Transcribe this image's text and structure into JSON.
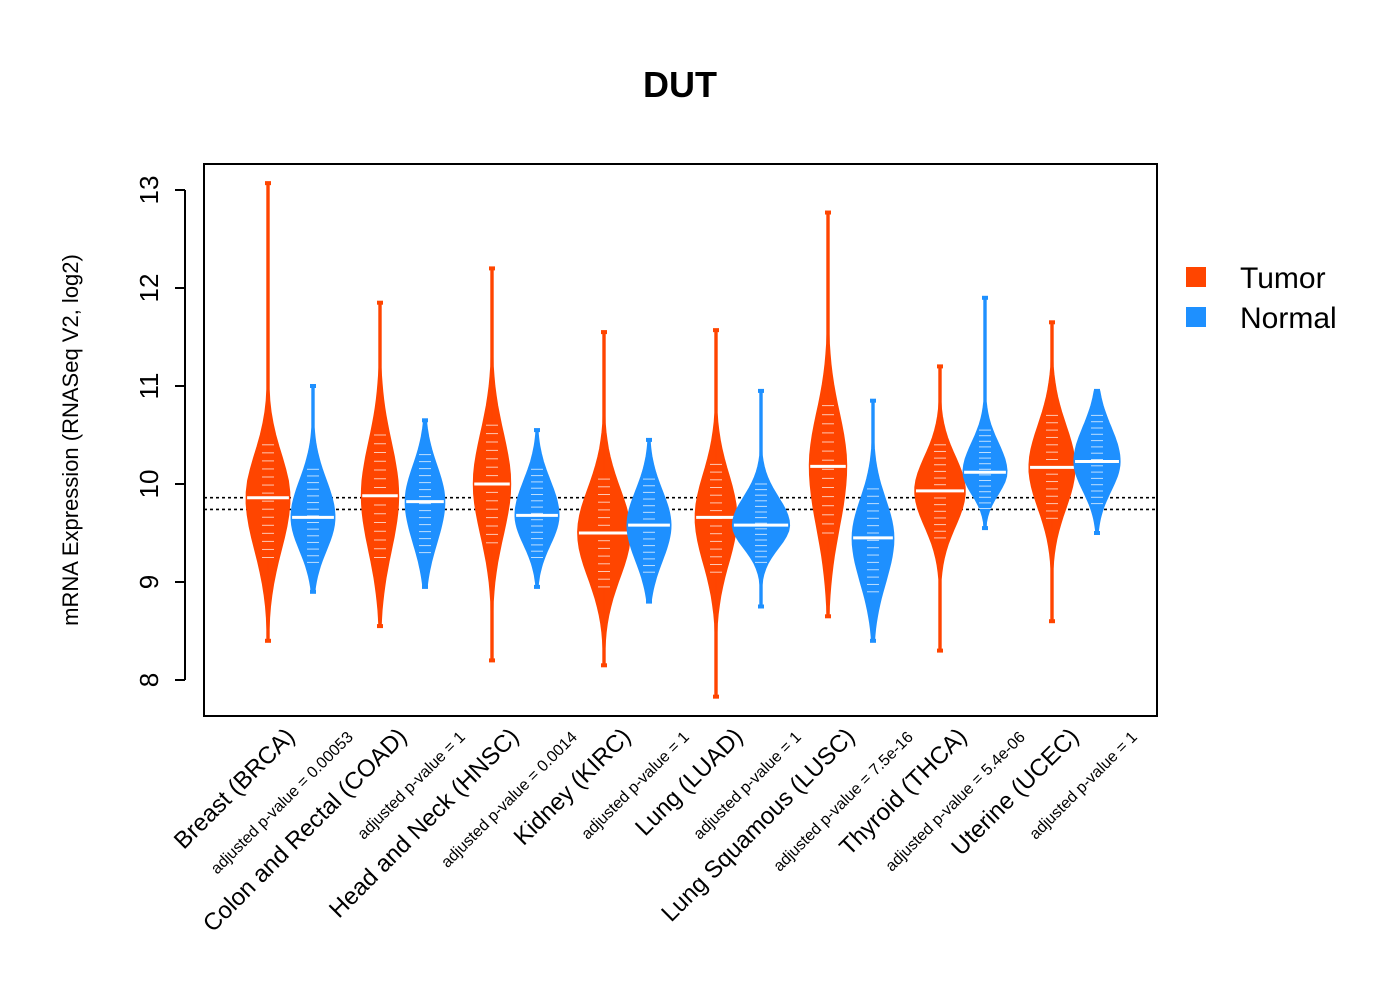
{
  "chart_data": {
    "type": "violin",
    "title": "DUT",
    "ylabel": "mRNA Expression (RNASeq V2, log2)",
    "xlabel": "",
    "ylim": [
      7.65,
      13.28
    ],
    "yticks": [
      8,
      9,
      10,
      11,
      12,
      13
    ],
    "reference_lines": [
      9.74,
      9.86
    ],
    "legend": {
      "position": "right",
      "entries": [
        {
          "name": "Tumor",
          "color": "#FF4500"
        },
        {
          "name": "Normal",
          "color": "#1E90FF"
        }
      ]
    },
    "categories": [
      {
        "label": "Breast (BRCA)",
        "pvalue": "adjusted p-value = 0.00053",
        "tumor": {
          "min": 8.4,
          "max": 13.07,
          "median": 9.86,
          "q1": 9.45,
          "q3": 10.2,
          "width": 1.0
        },
        "normal": {
          "min": 8.9,
          "max": 11.0,
          "median": 9.66,
          "q1": 9.4,
          "q3": 9.95,
          "width": 1.0
        }
      },
      {
        "label": "Colon and Rectal (COAD)",
        "pvalue": "adjusted p-value = 1",
        "tumor": {
          "min": 8.55,
          "max": 11.85,
          "median": 9.88,
          "q1": 9.45,
          "q3": 10.3,
          "width": 0.85
        },
        "normal": {
          "min": 8.95,
          "max": 10.65,
          "median": 9.82,
          "q1": 9.5,
          "q3": 10.1,
          "width": 0.9
        }
      },
      {
        "label": "Head and Neck (HNSC)",
        "pvalue": "adjusted p-value = 0.0014",
        "tumor": {
          "min": 8.2,
          "max": 12.2,
          "median": 10.0,
          "q1": 9.6,
          "q3": 10.4,
          "width": 0.85
        },
        "normal": {
          "min": 8.95,
          "max": 10.55,
          "median": 9.68,
          "q1": 9.45,
          "q3": 9.95,
          "width": 1.0
        }
      },
      {
        "label": "Kidney (KIRC)",
        "pvalue": "adjusted p-value = 1",
        "tumor": {
          "min": 8.15,
          "max": 11.55,
          "median": 9.5,
          "q1": 9.15,
          "q3": 9.85,
          "width": 1.2
        },
        "normal": {
          "min": 8.8,
          "max": 10.45,
          "median": 9.58,
          "q1": 9.3,
          "q3": 9.85,
          "width": 1.0
        }
      },
      {
        "label": "Lung (LUAD)",
        "pvalue": "adjusted p-value = 1",
        "tumor": {
          "min": 7.83,
          "max": 11.57,
          "median": 9.66,
          "q1": 9.3,
          "q3": 10.0,
          "width": 0.95
        },
        "normal": {
          "min": 8.75,
          "max": 10.95,
          "median": 9.58,
          "q1": 9.4,
          "q3": 9.8,
          "width": 1.3
        }
      },
      {
        "label": "Lung Squamous (LUSC)",
        "pvalue": "adjusted p-value = 7.5e-16",
        "tumor": {
          "min": 8.65,
          "max": 12.77,
          "median": 10.18,
          "q1": 9.7,
          "q3": 10.6,
          "width": 0.85
        },
        "normal": {
          "min": 8.4,
          "max": 10.85,
          "median": 9.45,
          "q1": 9.1,
          "q3": 9.75,
          "width": 0.95
        }
      },
      {
        "label": "Thyroid (THCA)",
        "pvalue": "adjusted p-value = 5.4e-06",
        "tumor": {
          "min": 8.3,
          "max": 11.2,
          "median": 9.93,
          "q1": 9.65,
          "q3": 10.2,
          "width": 1.15
        },
        "normal": {
          "min": 9.55,
          "max": 11.9,
          "median": 10.12,
          "q1": 9.95,
          "q3": 10.35,
          "width": 1.0
        }
      },
      {
        "label": "Uterine (UCEC)",
        "pvalue": "adjusted p-value = 1",
        "tumor": {
          "min": 8.6,
          "max": 11.65,
          "median": 10.17,
          "q1": 9.85,
          "q3": 10.5,
          "width": 1.05
        },
        "normal": {
          "min": 9.5,
          "max": 10.95,
          "median": 10.23,
          "q1": 10.0,
          "q3": 10.5,
          "width": 1.05
        }
      }
    ]
  }
}
